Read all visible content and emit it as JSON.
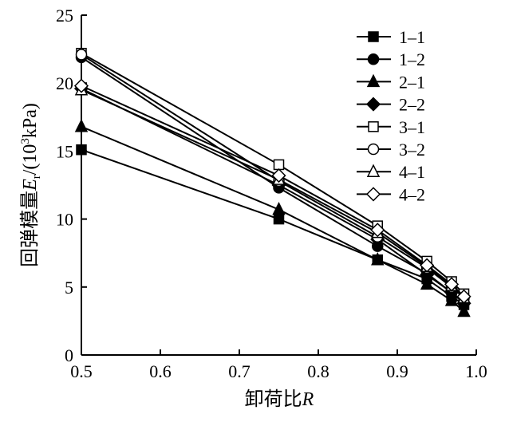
{
  "chart_data": {
    "type": "line",
    "title": "",
    "xlabel": "卸荷比R",
    "ylabel": "回弹模量E_r/(10³kPa)",
    "ylabel_parts": {
      "prefix": "回弹模量",
      "sym": "E",
      "sub": "r",
      "mid": "/(10",
      "sup": "3",
      "suffix": "kPa)"
    },
    "xlabel_parts": {
      "prefix": "卸荷比",
      "sym": "R"
    },
    "xlim": [
      0.5,
      1.0
    ],
    "ylim": [
      0,
      25
    ],
    "xticks": [
      "0.5",
      "0.6",
      "0.7",
      "0.8",
      "0.9",
      "1.0"
    ],
    "yticks": [
      "0",
      "5",
      "10",
      "15",
      "20",
      "25"
    ],
    "legend_position": "top-right",
    "x": [
      0.5,
      0.75,
      0.875,
      0.9375,
      0.96875,
      0.984375
    ],
    "series": [
      {
        "name": "1–1",
        "marker": "square-filled",
        "values": [
          15.1,
          10.0,
          7.0,
          5.6,
          4.3,
          3.7
        ]
      },
      {
        "name": "1–2",
        "marker": "circle-filled",
        "values": [
          21.9,
          12.3,
          8.0,
          6.0,
          4.6,
          3.8
        ]
      },
      {
        "name": "2–1",
        "marker": "triangle-filled",
        "values": [
          16.8,
          10.7,
          7.0,
          5.2,
          4.0,
          3.2
        ]
      },
      {
        "name": "2–2",
        "marker": "diamond-filled",
        "values": [
          19.6,
          12.5,
          8.5,
          5.9,
          4.6,
          3.8
        ]
      },
      {
        "name": "3–1",
        "marker": "square-open",
        "values": [
          22.2,
          14.0,
          9.5,
          6.9,
          5.4,
          4.5
        ]
      },
      {
        "name": "3–2",
        "marker": "circle-open",
        "values": [
          22.1,
          12.8,
          8.7,
          6.4,
          5.0,
          4.2
        ]
      },
      {
        "name": "4–1",
        "marker": "triangle-open",
        "values": [
          19.5,
          12.9,
          9.0,
          6.5,
          5.1,
          4.2
        ]
      },
      {
        "name": "4–2",
        "marker": "diamond-open",
        "values": [
          19.8,
          13.2,
          9.2,
          6.6,
          5.2,
          4.3
        ]
      }
    ]
  }
}
